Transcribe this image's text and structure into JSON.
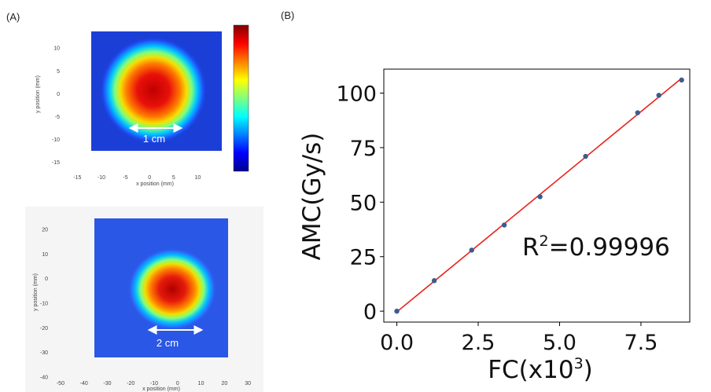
{
  "panel_a_label": "(A)",
  "panel_b_label": "(B)",
  "colors": {
    "line": "#e8231b",
    "points": "#3a5c8f"
  },
  "chart_data": [
    {
      "type": "heatmap",
      "xlabel": "x position (mm)",
      "ylabel": "y position (mm)",
      "xticks": [
        "-15",
        "-10",
        "-5",
        "0",
        "5",
        "10"
      ],
      "yticks": [
        "10",
        "5",
        "0",
        "-5",
        "-10",
        "-15"
      ],
      "xlim": [
        -18,
        15
      ],
      "ylim": [
        -17,
        14
      ],
      "spot_center": [
        -0.3,
        -1.0
      ],
      "colorbar": "jet",
      "annotation": "1 cm"
    },
    {
      "type": "heatmap",
      "xlabel": "x position (mm)",
      "ylabel": "y position (mm)",
      "xticks": [
        "-50",
        "-40",
        "-30",
        "-20",
        "-10",
        "0",
        "10",
        "20",
        "30"
      ],
      "yticks": [
        "20",
        "10",
        "0",
        "-10",
        "-20",
        "-30",
        "-40"
      ],
      "xlim": [
        -54,
        36
      ],
      "ylim": [
        -40,
        27
      ],
      "spot_center": [
        -3,
        -6
      ],
      "annotation": "2 cm"
    },
    {
      "type": "scatter",
      "x": [
        0.0,
        1.15,
        2.3,
        3.3,
        4.4,
        5.8,
        7.4,
        8.05,
        8.75
      ],
      "y": [
        0,
        14,
        28,
        39.5,
        52.5,
        71,
        91,
        99,
        106
      ],
      "fit_line": true,
      "xlabel_prefix": "FC(x10",
      "xlabel_sup": "3",
      "xlabel_suffix": ")",
      "ylabel": "AMC(Gy/s)",
      "xticks": [
        "0.0",
        "2.5",
        "5.0",
        "7.5"
      ],
      "xtick_values": [
        0,
        2.5,
        5,
        7.5
      ],
      "yticks": [
        "0",
        "25",
        "50",
        "75",
        "100"
      ],
      "ytick_values": [
        0,
        25,
        50,
        75,
        100
      ],
      "xlim": [
        -0.4,
        9.0
      ],
      "ylim": [
        -5,
        111
      ],
      "r2_prefix": "R",
      "r2_sup": "2",
      "r2_value": "=0.99996"
    }
  ]
}
